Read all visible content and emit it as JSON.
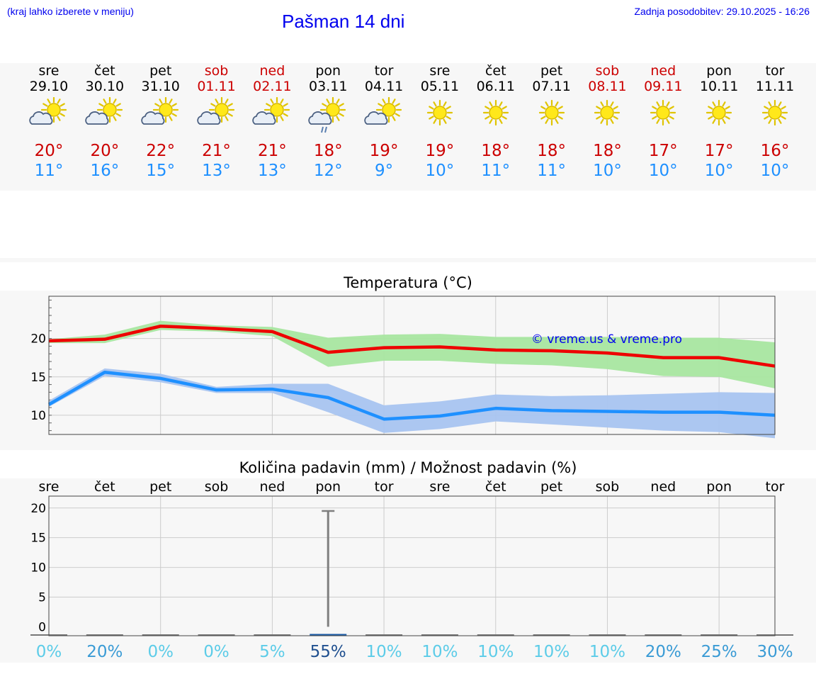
{
  "header": {
    "hint": "(kraj lahko izberete v meniju)",
    "title": "Pašman 14 dni",
    "updated": "Zadnja posodobitev: 29.10.2025 - 16:26"
  },
  "days": [
    {
      "name": "sre",
      "date": "29.10",
      "weekend": false,
      "icon": "partly-cloudy-icon",
      "tmax": "20°",
      "tmin": "11°"
    },
    {
      "name": "čet",
      "date": "30.10",
      "weekend": false,
      "icon": "partly-cloudy-icon",
      "tmax": "20°",
      "tmin": "16°"
    },
    {
      "name": "pet",
      "date": "31.10",
      "weekend": false,
      "icon": "partly-cloudy-icon",
      "tmax": "22°",
      "tmin": "15°"
    },
    {
      "name": "sob",
      "date": "01.11",
      "weekend": true,
      "icon": "partly-cloudy-icon",
      "tmax": "21°",
      "tmin": "13°"
    },
    {
      "name": "ned",
      "date": "02.11",
      "weekend": true,
      "icon": "partly-cloudy-icon",
      "tmax": "21°",
      "tmin": "13°"
    },
    {
      "name": "pon",
      "date": "03.11",
      "weekend": false,
      "icon": "partly-cloudy-rain-icon",
      "tmax": "18°",
      "tmin": "12°"
    },
    {
      "name": "tor",
      "date": "04.11",
      "weekend": false,
      "icon": "partly-cloudy-icon",
      "tmax": "19°",
      "tmin": "9°"
    },
    {
      "name": "sre",
      "date": "05.11",
      "weekend": false,
      "icon": "sun-icon",
      "tmax": "19°",
      "tmin": "10°"
    },
    {
      "name": "čet",
      "date": "06.11",
      "weekend": false,
      "icon": "sun-icon",
      "tmax": "18°",
      "tmin": "11°"
    },
    {
      "name": "pet",
      "date": "07.11",
      "weekend": false,
      "icon": "sun-icon",
      "tmax": "18°",
      "tmin": "11°"
    },
    {
      "name": "sob",
      "date": "08.11",
      "weekend": true,
      "icon": "sun-icon",
      "tmax": "18°",
      "tmin": "10°"
    },
    {
      "name": "ned",
      "date": "09.11",
      "weekend": true,
      "icon": "sun-icon",
      "tmax": "17°",
      "tmin": "10°"
    },
    {
      "name": "pon",
      "date": "10.11",
      "weekend": false,
      "icon": "sun-icon",
      "tmax": "17°",
      "tmin": "10°"
    },
    {
      "name": "tor",
      "date": "11.11",
      "weekend": false,
      "icon": "sun-icon",
      "tmax": "16°",
      "tmin": "10°"
    }
  ],
  "colors": {
    "weekend": "#cc0000",
    "tmax_line": "#ee0000",
    "tmax_band": "#a8e6a0",
    "tmin_line": "#1e90ff",
    "tmin_band": "#a8c4f0",
    "link": "#0000ee"
  },
  "chart_data": [
    {
      "type": "line",
      "title": "Temperatura (°C)",
      "watermark": "© vreme.us & vreme.pro",
      "ylim": [
        7.5,
        25.5
      ],
      "yticks": [
        10,
        15,
        20
      ],
      "grid": true,
      "series": [
        {
          "name": "max",
          "color": "#ee0000",
          "values": [
            19.7,
            19.9,
            21.6,
            21.3,
            20.9,
            18.2,
            18.8,
            18.9,
            18.5,
            18.4,
            18.1,
            17.5,
            17.5,
            16.4
          ],
          "band_low": [
            19.4,
            19.4,
            21.1,
            20.9,
            20.3,
            16.3,
            17.1,
            17.1,
            16.7,
            16.5,
            16.0,
            15.1,
            15.0,
            13.5
          ],
          "band_high": [
            19.9,
            20.5,
            22.3,
            21.7,
            21.5,
            20.1,
            20.5,
            20.6,
            20.2,
            20.2,
            20.2,
            20.1,
            20.1,
            19.5
          ]
        },
        {
          "name": "min",
          "color": "#1e90ff",
          "values": [
            11.4,
            15.6,
            14.8,
            13.3,
            13.4,
            12.3,
            9.5,
            9.9,
            10.9,
            10.6,
            10.5,
            10.4,
            10.4,
            10.0
          ],
          "band_low": [
            11.1,
            15.1,
            14.3,
            12.9,
            12.9,
            10.4,
            7.7,
            8.2,
            9.2,
            8.8,
            8.4,
            8.0,
            7.8,
            7.0
          ],
          "band_high": [
            11.9,
            16.1,
            15.4,
            13.7,
            14.1,
            14.1,
            11.3,
            11.8,
            12.7,
            12.5,
            12.6,
            12.8,
            13.0,
            12.9
          ]
        }
      ]
    },
    {
      "type": "bar",
      "title": "Količina padavin (mm) / Možnost padavin (%)",
      "categories": [
        "sre",
        "čet",
        "pet",
        "sob",
        "ned",
        "pon",
        "tor",
        "sre",
        "čet",
        "pet",
        "sob",
        "ned",
        "pon",
        "tor"
      ],
      "ylim": [
        -1.5,
        22
      ],
      "yticks": [
        0,
        5,
        10,
        15,
        20
      ],
      "amount_mm": [
        0,
        0,
        0,
        0,
        0,
        0.3,
        0,
        0,
        0,
        0,
        0,
        0,
        0,
        0
      ],
      "amount_max_mm": [
        0,
        0,
        0,
        0,
        0,
        19.5,
        0,
        0,
        0,
        0,
        0,
        0,
        0,
        0
      ],
      "probability": [
        "0%",
        "20%",
        "0%",
        "0%",
        "5%",
        "55%",
        "10%",
        "10%",
        "10%",
        "10%",
        "10%",
        "20%",
        "25%",
        "30%"
      ],
      "probability_values": [
        0,
        20,
        0,
        0,
        5,
        55,
        10,
        10,
        10,
        10,
        10,
        20,
        25,
        30
      ]
    }
  ]
}
